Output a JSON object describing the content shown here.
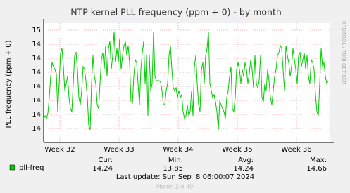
{
  "chart_data": {
    "type": "line",
    "title": "NTP kernel PLL frequency (ppm + 0) - by month",
    "ylabel": "PLL frequency (ppm + 0)",
    "watermark": "RRDTOOL / TOBI OETIKER",
    "ylim": [
      13.8,
      14.65
    ],
    "yticks": [
      {
        "value": 13.9,
        "label": "14"
      },
      {
        "value": 14.0,
        "label": "14"
      },
      {
        "value": 14.1,
        "label": "14"
      },
      {
        "value": 14.2,
        "label": "14"
      },
      {
        "value": 14.3,
        "label": "14"
      },
      {
        "value": 14.4,
        "label": "14"
      },
      {
        "value": 14.5,
        "label": "14"
      },
      {
        "value": 14.6,
        "label": "15"
      }
    ],
    "xticks": [
      {
        "value": 11.5,
        "label": "Week 32"
      },
      {
        "value": 53.5,
        "label": "Week 33"
      },
      {
        "value": 95.5,
        "label": "Week 34"
      },
      {
        "value": 137.5,
        "label": "Week 35"
      },
      {
        "value": 179.5,
        "label": "Week 36"
      }
    ],
    "grid": true,
    "series": [
      {
        "name": "pll-freq",
        "color": "#00cc00",
        "values": [
          13.98,
          13.99,
          13.97,
          14.01,
          14.12,
          14.27,
          14.37,
          14.34,
          14.32,
          14.29,
          14.02,
          14.22,
          14.44,
          14.47,
          14.34,
          14.17,
          14.22,
          14.27,
          14.12,
          14.04,
          14.02,
          14.22,
          14.42,
          14.44,
          14.32,
          14.12,
          14.07,
          14.17,
          14.34,
          14.32,
          14.24,
          14.12,
          13.92,
          13.89,
          14.22,
          14.42,
          14.27,
          14.22,
          14.07,
          14.04,
          14.22,
          14.39,
          14.44,
          14.32,
          14.49,
          14.27,
          14.47,
          14.52,
          14.32,
          14.42,
          14.59,
          14.37,
          14.47,
          14.37,
          14.54,
          14.32,
          14.42,
          14.49,
          14.52,
          14.42,
          14.49,
          14.37,
          14.09,
          14.08,
          14.27,
          14.39,
          14.37,
          14.22,
          14.07,
          14.32,
          14.44,
          14.52,
          14.22,
          14.42,
          13.99,
          14.42,
          14.17,
          14.22,
          14.59,
          14.27,
          14.24,
          14.24,
          14.24,
          14.23,
          14.17,
          14.07,
          14.07,
          14.17,
          14.22,
          14.42,
          14.49,
          14.32,
          14.19,
          14.17,
          14.19,
          14.12,
          14.17,
          14.12,
          14.14,
          14.02,
          13.97,
          13.99,
          14.07,
          13.99,
          14.02,
          14.17,
          13.99,
          14.34,
          14.42,
          14.22,
          14.07,
          14.02,
          14.32,
          14.37,
          14.22,
          14.42,
          14.47,
          14.59,
          14.22,
          14.17,
          14.12,
          14.14,
          14.09,
          14.02,
          13.89,
          14.09,
          14.07,
          14.04,
          14.02,
          13.97,
          14.12,
          14.17,
          14.27,
          14.34,
          14.04,
          14.02,
          14.12,
          14.32,
          14.37,
          14.32,
          14.22,
          14.32,
          14.27,
          14.37,
          14.32,
          14.22,
          14.29,
          14.39,
          14.32,
          14.19,
          14.42,
          14.22,
          14.19,
          14.24,
          14.42,
          14.12,
          14.09,
          14.22,
          14.17,
          14.32,
          14.24,
          14.12,
          14.07,
          14.17,
          14.27,
          14.32,
          14.42,
          14.44,
          14.49,
          14.47,
          14.32,
          14.17,
          14.49,
          14.42,
          14.37,
          14.27,
          14.34,
          14.47,
          14.39,
          14.32,
          14.22,
          14.42,
          14.44,
          14.34,
          14.39,
          14.44,
          14.32,
          14.42,
          14.27,
          14.22,
          14.39,
          14.37,
          14.32,
          14.14,
          14.02,
          13.99,
          14.22,
          14.47,
          14.34,
          14.37,
          14.27,
          14.22,
          14.24
        ]
      }
    ],
    "stats": {
      "headers": [
        "Cur:",
        "Min:",
        "Avg:",
        "Max:"
      ],
      "values": [
        14.24,
        13.85,
        14.24,
        14.66
      ]
    },
    "last_update": "Last update: Sun Sep  8 06:00:07 2024",
    "footer": "Munin 2.0.49"
  }
}
